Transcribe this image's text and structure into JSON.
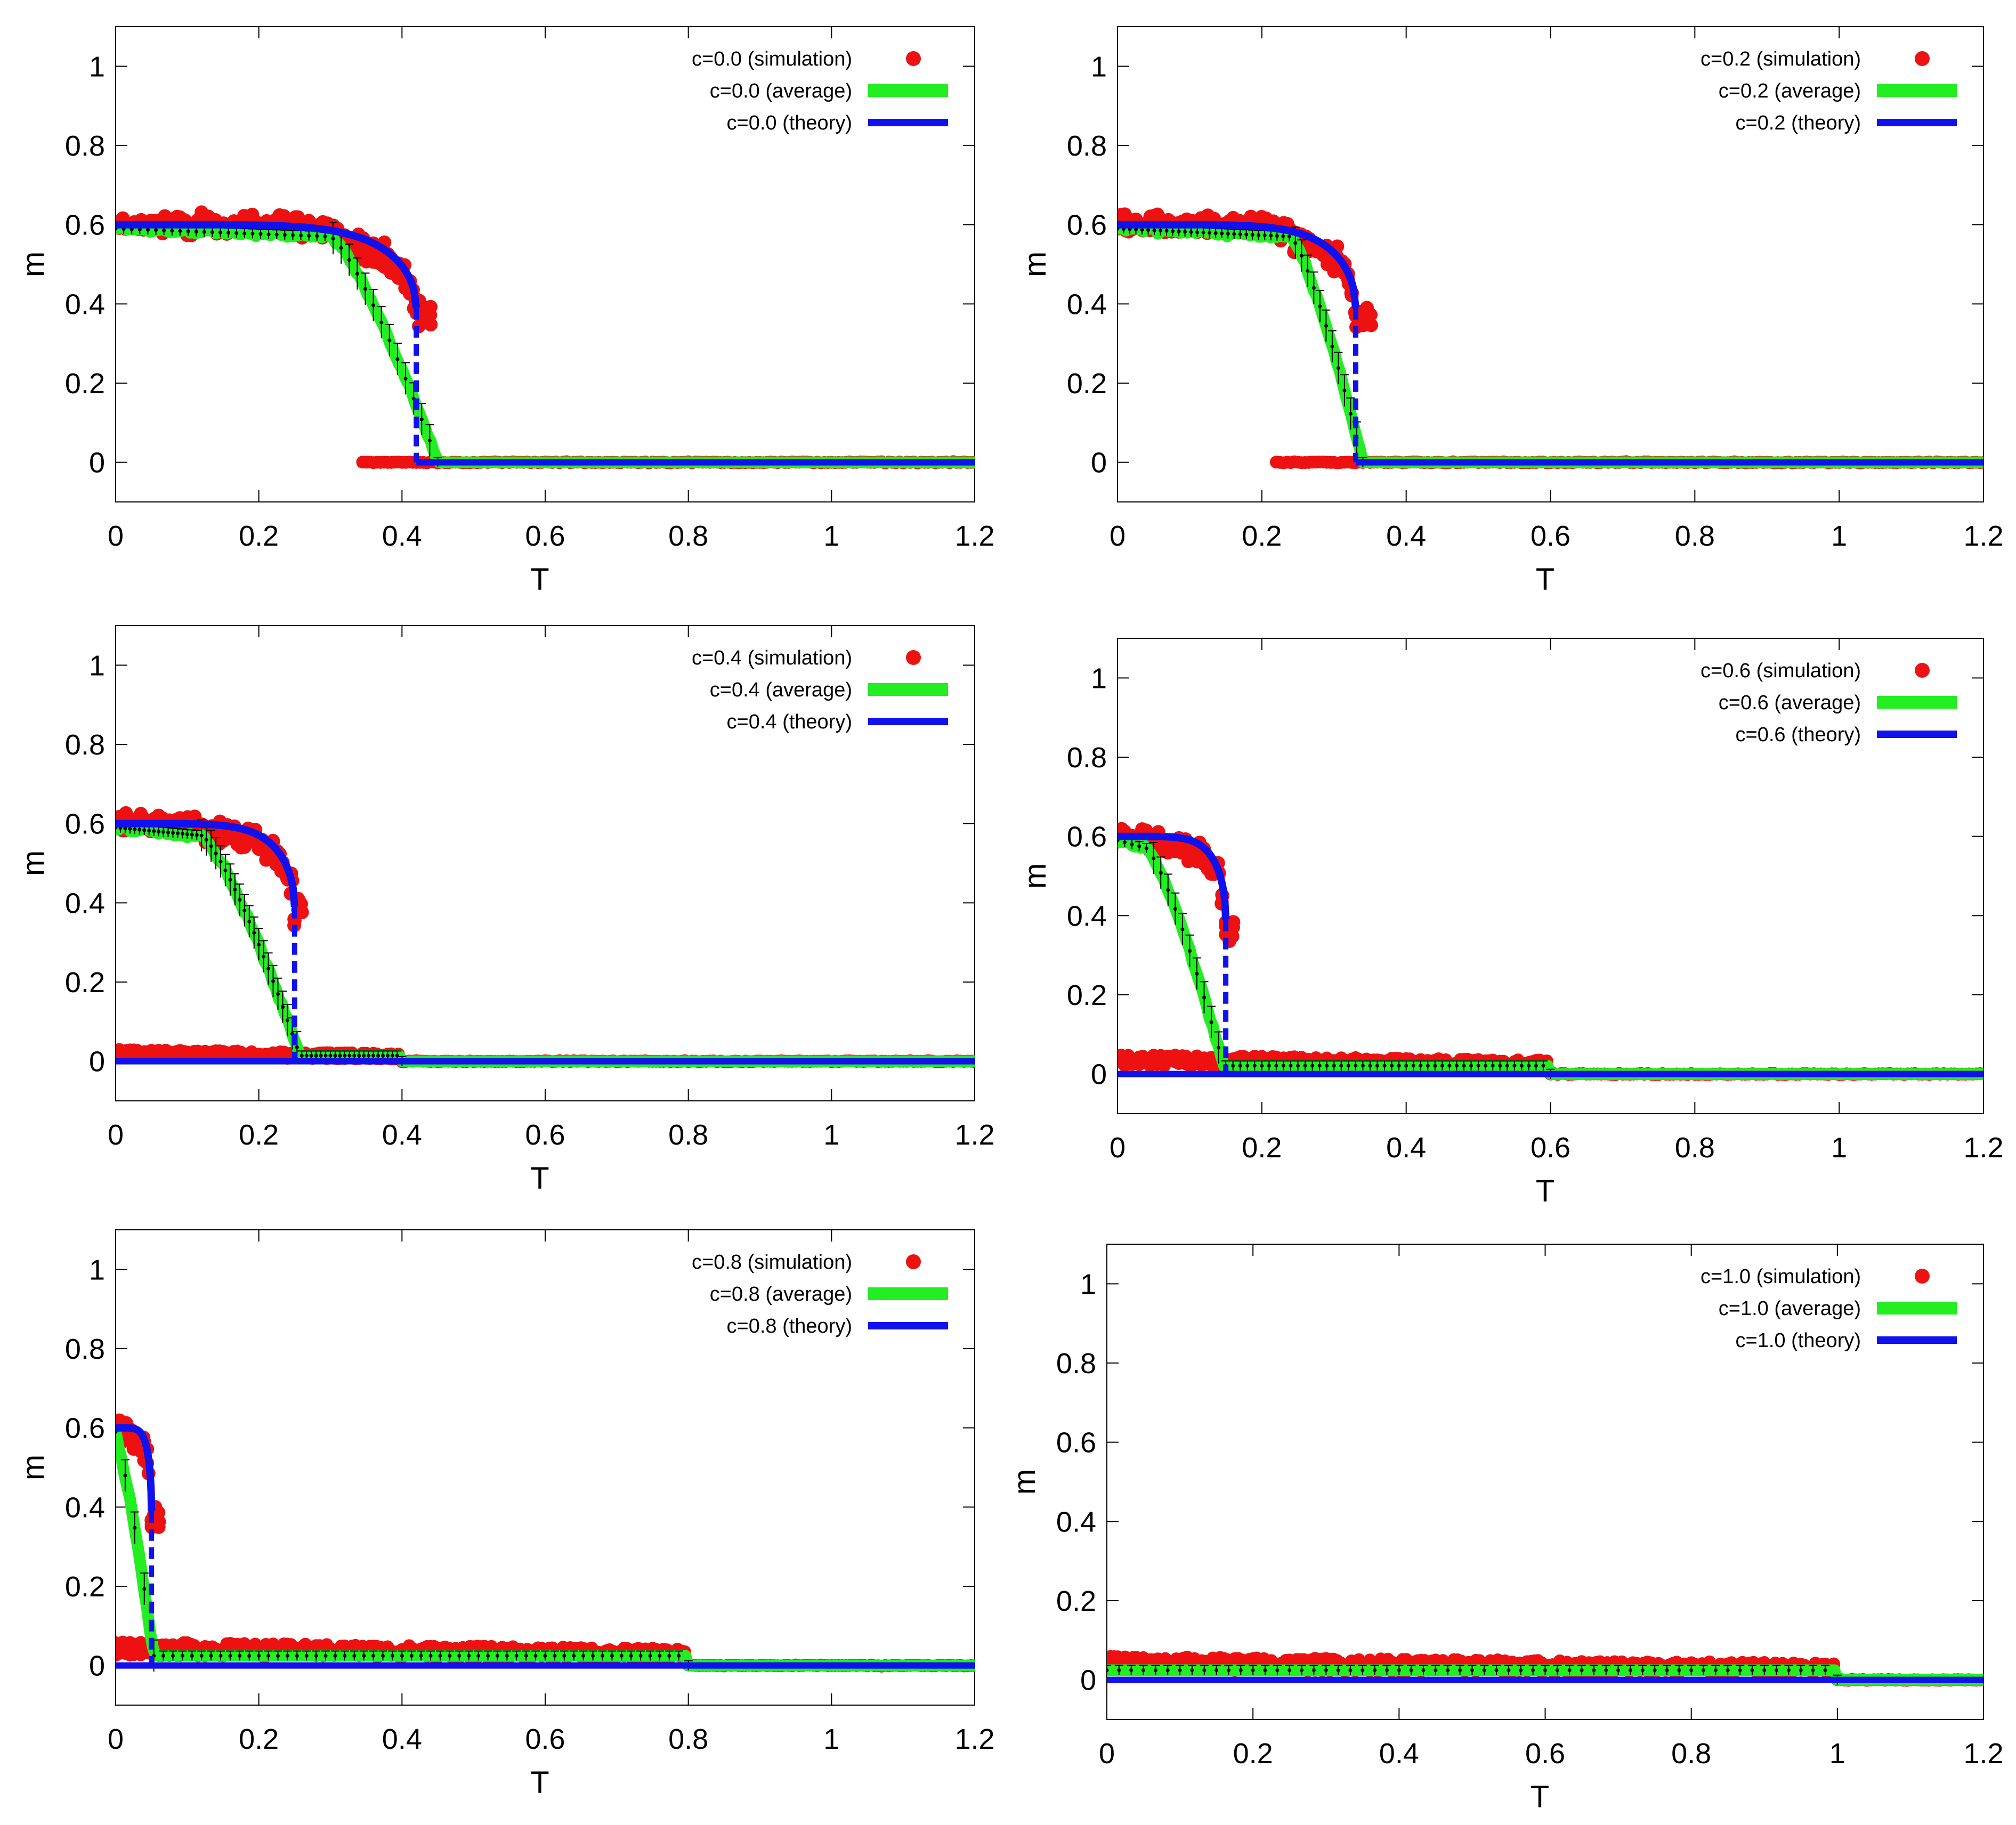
{
  "colors": {
    "simulation": "#ee1111",
    "average": "#22ee22",
    "theory": "#1111ee",
    "errorbar": "#000000",
    "frame": "#000000"
  },
  "chart_data": [
    {
      "type": "scatter",
      "xlabel": "T",
      "ylabel": "m",
      "xlim": [
        0,
        1.2
      ],
      "ylim": [
        -0.1,
        1.1
      ],
      "xticks": [
        "0",
        "0.2",
        "0.4",
        "0.6",
        "0.8",
        "1",
        "1.2"
      ],
      "yticks": [
        "0",
        "0.2",
        "0.4",
        "0.6",
        "0.8",
        "1"
      ],
      "legend": [
        "c=0.0 (simulation)",
        "c=0.0 (average)",
        "c=0.0 (theory)"
      ],
      "legend_position": "top-right",
      "c": 0.0,
      "tc": 0.42,
      "fall_start": 0.3,
      "fall_end": 0.45,
      "ordered_sim_end": 0.44,
      "low_branch_start": 0.34,
      "tail_end": 0.0,
      "tail_height": 0.0
    },
    {
      "type": "scatter",
      "xlabel": "T",
      "ylabel": "m",
      "xlim": [
        0,
        1.2
      ],
      "ylim": [
        -0.1,
        1.1
      ],
      "xticks": [
        "0",
        "0.2",
        "0.4",
        "0.6",
        "0.8",
        "1",
        "1.2"
      ],
      "yticks": [
        "0",
        "0.2",
        "0.4",
        "0.6",
        "0.8",
        "1"
      ],
      "legend": [
        "c=0.2 (simulation)",
        "c=0.2 (average)",
        "c=0.2 (theory)"
      ],
      "legend_position": "top-right",
      "c": 0.2,
      "tc": 0.33,
      "fall_start": 0.24,
      "fall_end": 0.34,
      "ordered_sim_end": 0.35,
      "low_branch_start": 0.22,
      "tail_end": 0.0,
      "tail_height": 0.0
    },
    {
      "type": "scatter",
      "xlabel": "T",
      "ylabel": "m",
      "xlim": [
        0,
        1.2
      ],
      "ylim": [
        -0.1,
        1.1
      ],
      "xticks": [
        "0",
        "0.2",
        "0.4",
        "0.6",
        "0.8",
        "1",
        "1.2"
      ],
      "yticks": [
        "0",
        "0.2",
        "0.4",
        "0.6",
        "0.8",
        "1"
      ],
      "legend": [
        "c=0.4 (simulation)",
        "c=0.4 (average)",
        "c=0.4 (theory)"
      ],
      "legend_position": "top-right",
      "c": 0.4,
      "tc": 0.25,
      "fall_start": 0.12,
      "fall_end": 0.26,
      "ordered_sim_end": 0.26,
      "low_branch_start": 0.0,
      "tail_end": 0.4,
      "tail_height": 0.04
    },
    {
      "type": "scatter",
      "xlabel": "T",
      "ylabel": "m",
      "xlim": [
        0,
        1.2
      ],
      "ylim": [
        -0.1,
        1.1
      ],
      "xticks": [
        "0",
        "0.2",
        "0.4",
        "0.6",
        "0.8",
        "1",
        "1.2"
      ],
      "yticks": [
        "0",
        "0.2",
        "0.4",
        "0.6",
        "0.8",
        "1"
      ],
      "legend": [
        "c=0.6 (simulation)",
        "c=0.6 (average)",
        "c=0.6 (theory)"
      ],
      "legend_position": "top-right",
      "c": 0.6,
      "tc": 0.15,
      "fall_start": 0.04,
      "fall_end": 0.15,
      "ordered_sim_end": 0.16,
      "low_branch_start": 0.0,
      "tail_end": 0.6,
      "tail_height": 0.06
    },
    {
      "type": "scatter",
      "xlabel": "T",
      "ylabel": "m",
      "xlim": [
        0,
        1.2
      ],
      "ylim": [
        -0.1,
        1.1
      ],
      "xticks": [
        "0",
        "0.2",
        "0.4",
        "0.6",
        "0.8",
        "1",
        "1.2"
      ],
      "yticks": [
        "0",
        "0.2",
        "0.4",
        "0.6",
        "0.8",
        "1"
      ],
      "legend": [
        "c=0.8 (simulation)",
        "c=0.8 (average)",
        "c=0.8 (theory)"
      ],
      "legend_position": "top-right",
      "c": 0.8,
      "tc": 0.05,
      "fall_start": 0.0,
      "fall_end": 0.055,
      "ordered_sim_end": 0.06,
      "low_branch_start": 0.0,
      "tail_end": 0.8,
      "tail_height": 0.07
    },
    {
      "type": "scatter",
      "xlabel": "T",
      "ylabel": "m",
      "xlim": [
        0,
        1.2
      ],
      "ylim": [
        -0.1,
        1.1
      ],
      "xticks": [
        "0",
        "0.2",
        "0.4",
        "0.6",
        "0.8",
        "1",
        "1.2"
      ],
      "yticks": [
        "0",
        "0.2",
        "0.4",
        "0.6",
        "0.8",
        "1"
      ],
      "legend": [
        "c=1.0 (simulation)",
        "c=1.0 (average)",
        "c=1.0 (theory)"
      ],
      "legend_position": "top-right",
      "c": 1.0,
      "tc": 0.0,
      "fall_start": 0.0,
      "fall_end": 0.0,
      "ordered_sim_end": 0.0,
      "low_branch_start": 0.0,
      "tail_end": 1.0,
      "tail_height": 0.07
    }
  ]
}
